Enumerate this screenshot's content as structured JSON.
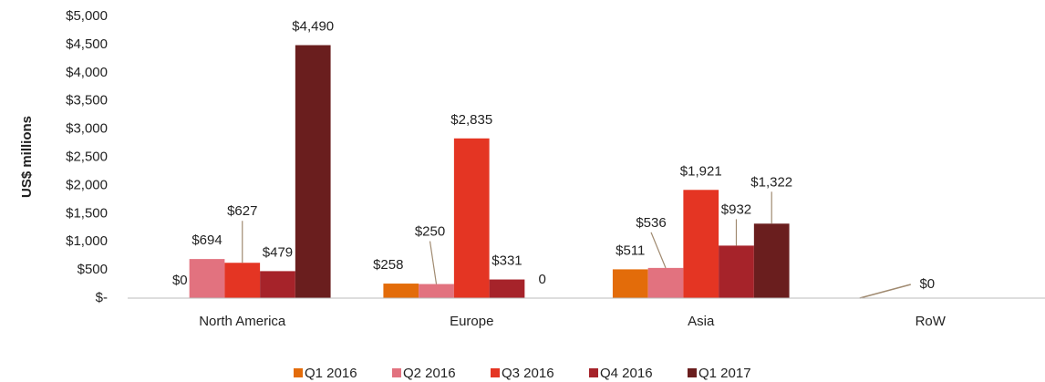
{
  "chart_data": {
    "type": "bar",
    "y_label": "US$ millions",
    "categories": [
      "North America",
      "Europe",
      "Asia",
      "RoW"
    ],
    "series": [
      {
        "name": "Q1 2016",
        "color": "#e36c0a",
        "values": [
          0,
          258,
          511,
          0
        ],
        "value_labels": [
          "$0",
          "$258",
          "$511",
          "$0"
        ]
      },
      {
        "name": "Q2 2016",
        "color": "#e2727f",
        "values": [
          694,
          250,
          536,
          0
        ],
        "value_labels": [
          "$694",
          "$250",
          "$536",
          null
        ]
      },
      {
        "name": "Q3 2016",
        "color": "#e43523",
        "values": [
          627,
          2835,
          1921,
          0
        ],
        "value_labels": [
          "$627",
          "$2,835",
          "$1,921",
          null
        ]
      },
      {
        "name": "Q4 2016",
        "color": "#a6232a",
        "values": [
          479,
          331,
          932,
          0
        ],
        "value_labels": [
          "$479",
          "$331",
          "$932",
          null
        ]
      },
      {
        "name": "Q1 2017",
        "color": "#6a1e1e",
        "values": [
          4490,
          0,
          1322,
          0
        ],
        "value_labels": [
          "$4,490",
          "0",
          "$1,322",
          null
        ]
      }
    ],
    "ylim": [
      0,
      5000
    ],
    "yticks": [
      {
        "value": 0,
        "label": "$-"
      },
      {
        "value": 500,
        "label": "$500"
      },
      {
        "value": 1000,
        "label": "$1,000"
      },
      {
        "value": 1500,
        "label": "$1,500"
      },
      {
        "value": 2000,
        "label": "$2,000"
      },
      {
        "value": 2500,
        "label": "$2,500"
      },
      {
        "value": 3000,
        "label": "$3,000"
      },
      {
        "value": 3500,
        "label": "$3,500"
      },
      {
        "value": 4000,
        "label": "$4,000"
      },
      {
        "value": 4500,
        "label": "$4,500"
      },
      {
        "value": 5000,
        "label": "$5,000"
      }
    ],
    "grid": false,
    "legend": "bottom"
  }
}
